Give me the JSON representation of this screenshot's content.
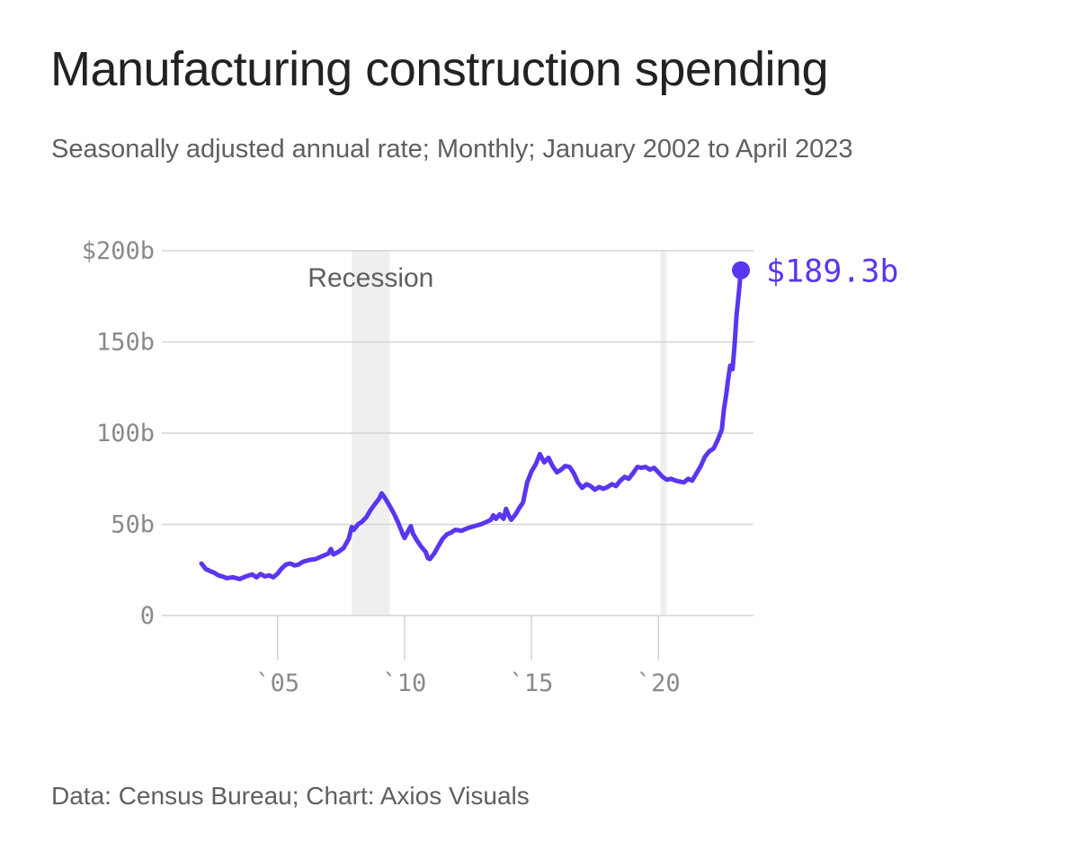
{
  "title": "Manufacturing construction spending",
  "subtitle": "Seasonally adjusted annual rate; Monthly; January 2002 to April 2023",
  "footer": "Data: Census Bureau; Chart: Axios Visuals",
  "colors": {
    "line": "#5b35f0",
    "grid": "#d4d4d4",
    "shade": "#efefef",
    "tick": "#8a8a8a"
  },
  "chart_data": {
    "type": "line",
    "title": "Manufacturing construction spending",
    "subtitle": "Seasonally adjusted annual rate; Monthly; January 2002 to April 2023",
    "xlabel": "",
    "ylabel": "",
    "xlim": [
      2002.0,
      2023.25
    ],
    "ylim": [
      0,
      200
    ],
    "grid": true,
    "y_ticks": [
      {
        "value": 0,
        "label": "0"
      },
      {
        "value": 50,
        "label": "50b"
      },
      {
        "value": 100,
        "label": "100b"
      },
      {
        "value": 150,
        "label": "150b"
      },
      {
        "value": 200,
        "label": "$200b"
      }
    ],
    "x_ticks": [
      {
        "value": 2005,
        "label": "`05"
      },
      {
        "value": 2010,
        "label": "`10"
      },
      {
        "value": 2015,
        "label": "`15"
      },
      {
        "value": 2020,
        "label": "`20"
      }
    ],
    "shaded_periods": [
      {
        "start": 2007.92,
        "end": 2009.42,
        "label": "Recession"
      },
      {
        "start": 2020.08,
        "end": 2020.33,
        "label": ""
      }
    ],
    "end_label": "$189.3b",
    "series": [
      {
        "values": [
          [
            2002.0,
            28.5
          ],
          [
            2002.17,
            25.5
          ],
          [
            2002.33,
            24.5
          ],
          [
            2002.5,
            23.5
          ],
          [
            2002.67,
            22.0
          ],
          [
            2002.83,
            21.5
          ],
          [
            2003.0,
            20.5
          ],
          [
            2003.25,
            21.0
          ],
          [
            2003.5,
            20.0
          ],
          [
            2003.75,
            21.5
          ],
          [
            2004.0,
            22.5
          ],
          [
            2004.17,
            21.0
          ],
          [
            2004.33,
            22.8
          ],
          [
            2004.5,
            21.5
          ],
          [
            2004.67,
            22.0
          ],
          [
            2004.83,
            21.0
          ],
          [
            2005.0,
            23.0
          ],
          [
            2005.17,
            26.0
          ],
          [
            2005.33,
            28.0
          ],
          [
            2005.5,
            28.5
          ],
          [
            2005.67,
            27.5
          ],
          [
            2005.83,
            28.0
          ],
          [
            2006.0,
            29.5
          ],
          [
            2006.25,
            30.5
          ],
          [
            2006.5,
            31.0
          ],
          [
            2006.75,
            32.5
          ],
          [
            2007.0,
            34.0
          ],
          [
            2007.1,
            36.5
          ],
          [
            2007.2,
            33.5
          ],
          [
            2007.4,
            35.0
          ],
          [
            2007.6,
            37.0
          ],
          [
            2007.8,
            42.0
          ],
          [
            2007.92,
            48.5
          ],
          [
            2008.0,
            47.0
          ],
          [
            2008.17,
            50.0
          ],
          [
            2008.33,
            51.5
          ],
          [
            2008.5,
            54.0
          ],
          [
            2008.67,
            58.0
          ],
          [
            2008.83,
            61.0
          ],
          [
            2009.0,
            64.0
          ],
          [
            2009.1,
            67.0
          ],
          [
            2009.25,
            64.0
          ],
          [
            2009.42,
            60.0
          ],
          [
            2009.58,
            56.0
          ],
          [
            2009.75,
            51.0
          ],
          [
            2009.92,
            45.0
          ],
          [
            2010.0,
            42.5
          ],
          [
            2010.17,
            47.0
          ],
          [
            2010.25,
            49.0
          ],
          [
            2010.33,
            45.0
          ],
          [
            2010.5,
            41.0
          ],
          [
            2010.67,
            37.5
          ],
          [
            2010.83,
            35.0
          ],
          [
            2010.92,
            31.5
          ],
          [
            2011.0,
            31.0
          ],
          [
            2011.17,
            34.0
          ],
          [
            2011.33,
            38.0
          ],
          [
            2011.5,
            42.0
          ],
          [
            2011.67,
            44.5
          ],
          [
            2011.83,
            45.5
          ],
          [
            2012.0,
            47.0
          ],
          [
            2012.25,
            46.5
          ],
          [
            2012.5,
            48.0
          ],
          [
            2012.75,
            49.0
          ],
          [
            2013.0,
            50.0
          ],
          [
            2013.25,
            51.5
          ],
          [
            2013.4,
            52.5
          ],
          [
            2013.5,
            55.0
          ],
          [
            2013.6,
            53.0
          ],
          [
            2013.75,
            55.5
          ],
          [
            2013.9,
            53.0
          ],
          [
            2014.0,
            58.5
          ],
          [
            2014.1,
            55.0
          ],
          [
            2014.2,
            52.5
          ],
          [
            2014.4,
            56.0
          ],
          [
            2014.5,
            58.5
          ],
          [
            2014.67,
            62.0
          ],
          [
            2014.83,
            73.0
          ],
          [
            2015.0,
            79.0
          ],
          [
            2015.17,
            83.0
          ],
          [
            2015.33,
            88.5
          ],
          [
            2015.5,
            84.0
          ],
          [
            2015.67,
            86.5
          ],
          [
            2015.83,
            82.0
          ],
          [
            2016.0,
            78.5
          ],
          [
            2016.17,
            80.0
          ],
          [
            2016.33,
            82.0
          ],
          [
            2016.5,
            81.5
          ],
          [
            2016.67,
            78.0
          ],
          [
            2016.83,
            73.0
          ],
          [
            2017.0,
            70.0
          ],
          [
            2017.17,
            72.0
          ],
          [
            2017.33,
            71.0
          ],
          [
            2017.5,
            69.0
          ],
          [
            2017.67,
            70.5
          ],
          [
            2017.83,
            69.5
          ],
          [
            2018.0,
            70.5
          ],
          [
            2018.17,
            72.0
          ],
          [
            2018.33,
            71.0
          ],
          [
            2018.5,
            74.0
          ],
          [
            2018.67,
            76.0
          ],
          [
            2018.83,
            75.0
          ],
          [
            2019.0,
            78.0
          ],
          [
            2019.17,
            81.5
          ],
          [
            2019.33,
            81.0
          ],
          [
            2019.5,
            81.5
          ],
          [
            2019.67,
            80.0
          ],
          [
            2019.83,
            81.0
          ],
          [
            2020.0,
            78.5
          ],
          [
            2020.17,
            76.0
          ],
          [
            2020.33,
            74.5
          ],
          [
            2020.5,
            75.0
          ],
          [
            2020.67,
            74.0
          ],
          [
            2020.83,
            73.5
          ],
          [
            2021.0,
            73.0
          ],
          [
            2021.17,
            75.0
          ],
          [
            2021.33,
            74.0
          ],
          [
            2021.5,
            78.0
          ],
          [
            2021.67,
            82.0
          ],
          [
            2021.83,
            87.0
          ],
          [
            2022.0,
            90.0
          ],
          [
            2022.17,
            91.5
          ],
          [
            2022.33,
            96.0
          ],
          [
            2022.5,
            102.0
          ],
          [
            2022.58,
            113.0
          ],
          [
            2022.67,
            121.0
          ],
          [
            2022.75,
            130.0
          ],
          [
            2022.83,
            137.0
          ],
          [
            2022.92,
            135.0
          ],
          [
            2023.0,
            148.0
          ],
          [
            2023.08,
            165.0
          ],
          [
            2023.17,
            177.0
          ],
          [
            2023.25,
            189.3
          ]
        ]
      }
    ]
  }
}
